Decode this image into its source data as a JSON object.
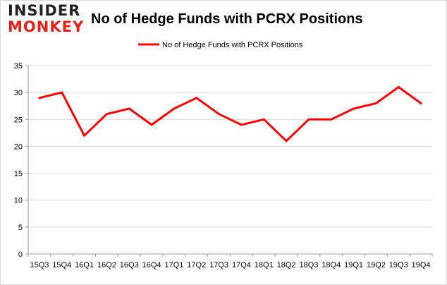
{
  "logo": {
    "top": "INSIDER",
    "bottom": "MONKEY"
  },
  "chart_data": {
    "type": "line",
    "title": "No of Hedge Funds with PCRX Positions",
    "xlabel": "",
    "ylabel": "",
    "categories": [
      "15Q3",
      "15Q4",
      "16Q1",
      "16Q2",
      "16Q3",
      "16Q4",
      "17Q1",
      "17Q2",
      "17Q3",
      "17Q4",
      "18Q1",
      "18Q2",
      "18Q3",
      "18Q4",
      "19Q1",
      "19Q2",
      "19Q3",
      "19Q4"
    ],
    "series": [
      {
        "name": "No of Hedge Funds with PCRX Positions",
        "color": "#ff0000",
        "values": [
          29,
          30,
          22,
          26,
          27,
          24,
          27,
          29,
          26,
          24,
          25,
          21,
          25,
          25,
          27,
          28,
          31,
          28
        ]
      }
    ],
    "ylim": [
      0,
      35
    ],
    "yticks": [
      0,
      5,
      10,
      15,
      20,
      25,
      30,
      35
    ],
    "grid": true,
    "legend": "top-center"
  }
}
